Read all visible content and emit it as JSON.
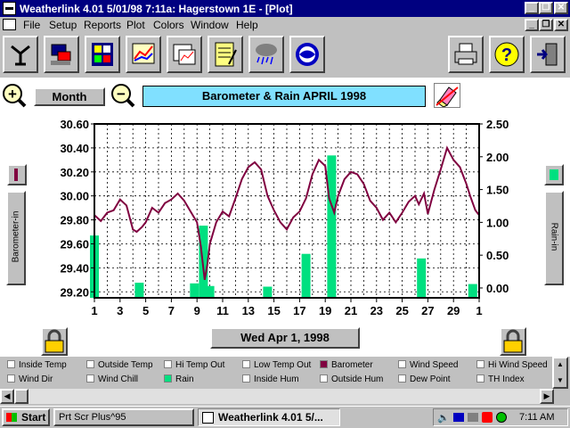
{
  "window": {
    "title": "Weatherlink 4.01    5/01/98    7:11a: Hagerstown 1E  - [Plot]"
  },
  "menu": [
    "File",
    "Setup",
    "Reports",
    "Plot",
    "Colors",
    "Window",
    "Help"
  ],
  "toolbar_icons": [
    "station-icon",
    "computer-icon",
    "summary-icon",
    "graph-icon",
    "plot-icon",
    "notepad-icon",
    "rain-cloud-icon",
    "noaa-icon",
    "printer-icon",
    "help-icon",
    "exit-icon"
  ],
  "controls": {
    "zoom_in": "+",
    "zoom_out": "−",
    "period_label": "Month",
    "plot_title": "Barometer & Rain  APRIL 1998",
    "date_label": "Wed Apr 1, 1998"
  },
  "left_axis": {
    "label": "Barometer-in",
    "ticks": [
      "30.60",
      "30.40",
      "30.20",
      "30.00",
      "29.80",
      "29.60",
      "29.40",
      "29.20"
    ]
  },
  "right_axis": {
    "label": "Rain-in",
    "ticks": [
      "2.50",
      "2.00",
      "1.50",
      "1.00",
      "0.50",
      "0.00"
    ]
  },
  "x_ticks": [
    "1",
    "3",
    "5",
    "7",
    "9",
    "11",
    "13",
    "15",
    "17",
    "19",
    "21",
    "23",
    "25",
    "27",
    "29",
    "1"
  ],
  "legend": [
    {
      "label": "Inside Temp",
      "checked": false
    },
    {
      "label": "Outside Temp",
      "checked": false
    },
    {
      "label": "Hi Temp Out",
      "checked": false
    },
    {
      "label": "Low Temp Out",
      "checked": false
    },
    {
      "label": "Barometer",
      "checked": true,
      "color": "#800040"
    },
    {
      "label": "Wind Speed",
      "checked": false
    },
    {
      "label": "Hi Wind Speed",
      "checked": false
    },
    {
      "label": "Wind Dir",
      "checked": false
    },
    {
      "label": "Wind Chill",
      "checked": false
    },
    {
      "label": "Rain",
      "checked": true,
      "color": "#00e080"
    },
    {
      "label": "Inside Hum",
      "checked": false
    },
    {
      "label": "Outside Hum",
      "checked": false
    },
    {
      "label": "Dew Point",
      "checked": false
    },
    {
      "label": "TH Index",
      "checked": false
    }
  ],
  "taskbar": {
    "start": "Start",
    "tasks": [
      "Prt Scr Plus^95",
      "Weatherlink 4.01     5/..."
    ],
    "clock": "7:11 AM"
  },
  "chart_data": {
    "type": "line",
    "title": "Barometer & Rain  APRIL 1998",
    "xlabel": "",
    "ylabel": "Barometer-in",
    "y2label": "Rain-in",
    "ylim": [
      29.15,
      30.6
    ],
    "y2lim": [
      -0.15,
      2.5
    ],
    "xlim": [
      1,
      31
    ],
    "grid": true,
    "series": [
      {
        "name": "Barometer",
        "type": "line",
        "color": "#800040",
        "x": [
          1,
          1.5,
          2,
          2.5,
          3,
          3.5,
          4,
          4.3,
          4.7,
          5,
          5.5,
          6,
          6.5,
          7,
          7.5,
          8,
          8.5,
          9,
          9.3,
          9.6,
          9.8,
          10,
          10.5,
          11,
          11.5,
          12,
          12.5,
          13,
          13.5,
          14,
          14.5,
          15,
          15.5,
          16,
          16.5,
          17,
          17.5,
          18,
          18.5,
          19,
          19.3,
          19.7,
          20,
          20.5,
          21,
          21.5,
          22,
          22.5,
          23,
          23.5,
          24,
          24.5,
          25,
          25.5,
          26,
          26.3,
          26.7,
          27,
          27.5,
          28,
          28.5,
          29,
          29.5,
          30,
          30.3,
          30.7,
          31
        ],
        "y": [
          29.84,
          29.79,
          29.86,
          29.88,
          29.97,
          29.92,
          29.72,
          29.7,
          29.74,
          29.78,
          29.9,
          29.86,
          29.94,
          29.97,
          30.02,
          29.96,
          29.87,
          29.78,
          29.58,
          29.3,
          29.42,
          29.6,
          29.78,
          29.87,
          29.83,
          29.98,
          30.14,
          30.24,
          30.28,
          30.22,
          30.0,
          29.88,
          29.78,
          29.72,
          29.82,
          29.87,
          29.98,
          30.18,
          30.3,
          30.25,
          29.98,
          29.86,
          30.0,
          30.14,
          30.2,
          30.18,
          30.1,
          29.96,
          29.9,
          29.8,
          29.86,
          29.78,
          29.86,
          29.95,
          30.0,
          29.93,
          30.02,
          29.85,
          30.05,
          30.22,
          30.4,
          30.3,
          30.24,
          30.1,
          30.0,
          29.88,
          29.84
        ]
      },
      {
        "name": "Rain",
        "type": "bar",
        "color": "#00e080",
        "x": [
          1,
          4.5,
          8.8,
          9.5,
          10,
          14.5,
          17.5,
          19.5,
          26.5,
          30.5
        ],
        "values": [
          0.8,
          0.08,
          0.07,
          0.95,
          0.03,
          0.02,
          0.52,
          2.02,
          0.45,
          0.06
        ]
      }
    ]
  }
}
